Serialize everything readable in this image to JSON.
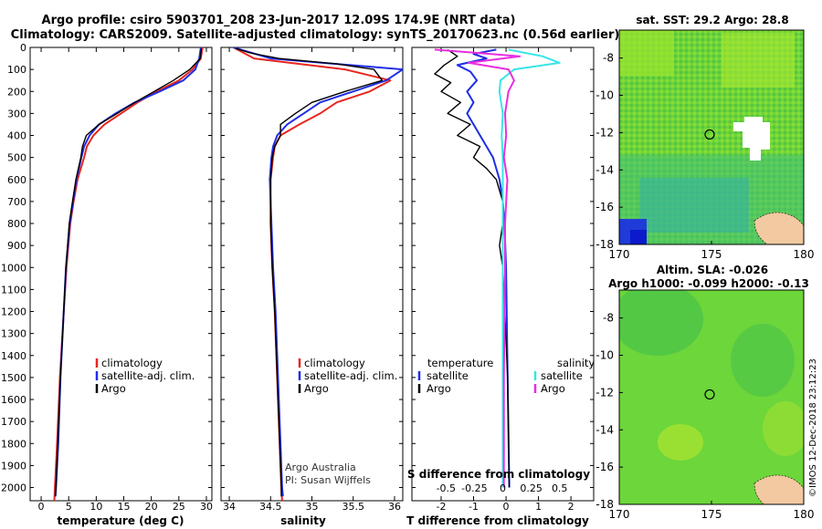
{
  "header": {
    "title_line1": "Argo profile: csiro 5903701_208 23-Jun-2017 12.09S 174.9E (NRT data)",
    "title_line2": "Climatology: CARS2009. Satellite-adjusted climatology: synTS_20170623.nc (0.56d earlier)"
  },
  "colors": {
    "climatology": "#e8261e",
    "satellite": "#1f2ee6",
    "argo": "#000000",
    "sal_sat": "#38e6e6",
    "sal_argo": "#e82ee0",
    "land": "#f2c9a0"
  },
  "footer": {
    "credit1": "Argo Australia",
    "credit2": "PI: Susan Wijffels",
    "stamp": "©IMOS 12-Dec-2018 23:12:23"
  },
  "chart_data": [
    {
      "type": "line",
      "title": "",
      "xlabel": "temperature (deg C)",
      "ylabel": "",
      "xlim": [
        -2,
        31
      ],
      "ylim": [
        2060,
        0
      ],
      "x_ticks": [
        "0",
        "5",
        "10",
        "15",
        "20",
        "25",
        "30"
      ],
      "x_tick_values": [
        0,
        5,
        10,
        15,
        20,
        25,
        30
      ],
      "y_tick_values": [
        0,
        100,
        200,
        300,
        400,
        500,
        600,
        700,
        800,
        900,
        1000,
        1100,
        1200,
        1300,
        1400,
        1500,
        1600,
        1700,
        1800,
        1900,
        2000
      ],
      "legend": [
        "climatology",
        "satellite-adj. clim.",
        "Argo"
      ],
      "series": [
        {
          "name": "climatology",
          "color_key": "climatology",
          "depth": [
            0,
            50,
            100,
            150,
            200,
            250,
            300,
            350,
            400,
            450,
            500,
            600,
            700,
            800,
            1000,
            1200,
            1500,
            1800,
            2000,
            2060
          ],
          "values": [
            29.3,
            29.0,
            27.5,
            25.0,
            21.0,
            17.5,
            14.5,
            11.5,
            9.5,
            8.3,
            7.8,
            6.6,
            5.9,
            5.3,
            4.6,
            4.1,
            3.4,
            2.9,
            2.5,
            2.4
          ]
        },
        {
          "name": "satellite-adj. clim.",
          "color_key": "satellite",
          "depth": [
            0,
            50,
            100,
            150,
            200,
            250,
            300,
            350,
            400,
            450,
            500,
            600,
            700,
            800,
            1000,
            1200,
            1500,
            1800,
            2000,
            2040
          ],
          "values": [
            29.0,
            28.7,
            28.0,
            25.8,
            21.5,
            17.0,
            13.5,
            10.5,
            8.8,
            7.8,
            7.3,
            6.4,
            5.8,
            5.2,
            4.5,
            4.1,
            3.5,
            3.1,
            2.7,
            2.6
          ]
        },
        {
          "name": "Argo",
          "color_key": "argo",
          "depth": [
            5,
            50,
            100,
            150,
            200,
            250,
            300,
            350,
            400,
            450,
            500,
            600,
            700,
            800,
            1000,
            1200,
            1500,
            1800,
            2000,
            2040
          ],
          "values": [
            29.1,
            28.9,
            27.0,
            24.0,
            20.5,
            17.0,
            13.8,
            10.5,
            8.2,
            7.5,
            7.2,
            6.3,
            5.7,
            5.1,
            4.5,
            4.1,
            3.5,
            3.0,
            2.7,
            2.6
          ]
        }
      ]
    },
    {
      "type": "line",
      "title": "",
      "xlabel": "salinity",
      "ylabel": "",
      "xlim": [
        33.9,
        36.1
      ],
      "ylim": [
        2060,
        0
      ],
      "x_ticks": [
        "34",
        "34.5",
        "35",
        "35.5",
        "36"
      ],
      "x_tick_values": [
        34,
        34.5,
        35,
        35.5,
        36
      ],
      "legend": [
        "climatology",
        "satellite-adj. clim.",
        "Argo"
      ],
      "series": [
        {
          "name": "climatology",
          "color_key": "climatology",
          "depth": [
            0,
            50,
            100,
            150,
            200,
            250,
            300,
            350,
            400,
            450,
            500,
            600,
            700,
            800,
            1000,
            1200,
            1500,
            1800,
            2000,
            2060
          ],
          "values": [
            34.05,
            34.3,
            35.4,
            35.95,
            35.7,
            35.3,
            35.1,
            34.85,
            34.62,
            34.55,
            34.53,
            34.5,
            34.5,
            34.5,
            34.52,
            34.55,
            34.58,
            34.61,
            34.63,
            34.64
          ]
        },
        {
          "name": "satellite-adj. clim.",
          "color_key": "satellite",
          "depth": [
            0,
            50,
            100,
            150,
            200,
            250,
            300,
            350,
            400,
            450,
            500,
            600,
            700,
            800,
            1000,
            1200,
            1500,
            1800,
            2000,
            2040
          ],
          "values": [
            34.05,
            34.5,
            36.1,
            35.9,
            35.5,
            35.1,
            34.9,
            34.7,
            34.58,
            34.53,
            34.51,
            34.49,
            34.5,
            34.51,
            34.53,
            34.56,
            34.59,
            34.62,
            34.64,
            34.65
          ]
        },
        {
          "name": "Argo",
          "color_key": "argo",
          "depth": [
            5,
            25,
            50,
            75,
            100,
            150,
            200,
            250,
            300,
            350,
            400,
            450,
            500,
            600,
            700,
            800,
            1000,
            1200,
            1500,
            1800,
            2000,
            2040
          ],
          "values": [
            34.08,
            34.25,
            34.6,
            35.3,
            35.75,
            35.85,
            35.4,
            35.0,
            34.8,
            34.62,
            34.62,
            34.55,
            34.52,
            34.5,
            34.5,
            34.5,
            34.52,
            34.55,
            34.58,
            34.61,
            34.63,
            34.63
          ]
        }
      ]
    },
    {
      "type": "line",
      "title": "",
      "xlabel": "T difference from climatology",
      "x2label": "S difference from climatology",
      "xlim": [
        -2.9,
        2.7
      ],
      "x2lim": [
        -0.8,
        0.8
      ],
      "ylim": [
        2060,
        0
      ],
      "x_ticks": [
        "-2",
        "-1",
        "0",
        "1",
        "2"
      ],
      "x_tick_values": [
        -2,
        -1,
        0,
        1,
        2
      ],
      "x2_ticks": [
        "-0.5",
        "-0.25",
        "0",
        "0.25",
        "0.5"
      ],
      "x2_tick_values": [
        -0.5,
        -0.25,
        0,
        0.25,
        0.5
      ],
      "legend_left_title": "temperature",
      "legend_right_title": "salinity",
      "legend": [
        "satellite",
        "Argo",
        "satellite",
        "Argo"
      ],
      "series": [
        {
          "name": "T satellite",
          "axis": "T",
          "color_key": "satellite",
          "depth": [
            10,
            30,
            50,
            80,
            110,
            150,
            200,
            250,
            300,
            400,
            500,
            600,
            700,
            800,
            1000,
            1500,
            2000
          ],
          "values": [
            -0.3,
            -1.0,
            -0.6,
            -1.5,
            -1.1,
            -0.9,
            -1.2,
            -1.0,
            -1.2,
            -0.8,
            -0.4,
            -0.2,
            -0.1,
            -0.05,
            0.0,
            0.05,
            0.1
          ]
        },
        {
          "name": "T Argo",
          "axis": "T",
          "color_key": "argo",
          "depth": [
            10,
            40,
            80,
            120,
            160,
            200,
            250,
            300,
            350,
            400,
            450,
            500,
            550,
            600,
            650,
            700,
            800,
            900,
            1000,
            1500,
            2000
          ],
          "values": [
            -1.8,
            -1.5,
            -1.9,
            -2.2,
            -1.7,
            -2.0,
            -1.4,
            -1.8,
            -1.1,
            -1.5,
            -0.8,
            -1.0,
            -0.6,
            -0.3,
            -0.2,
            -0.1,
            -0.1,
            -0.2,
            -0.1,
            0.05,
            0.1
          ]
        },
        {
          "name": "S satellite",
          "axis": "S",
          "color_key": "sal_sat",
          "depth": [
            10,
            40,
            70,
            100,
            150,
            200,
            300,
            400,
            500,
            600,
            800,
            1000,
            1500,
            2000
          ],
          "values": [
            0.05,
            0.35,
            0.5,
            0.1,
            -0.02,
            -0.03,
            0.0,
            -0.01,
            0.0,
            0.0,
            0.0,
            0.0,
            0.0,
            0.0
          ]
        },
        {
          "name": "S Argo",
          "axis": "S",
          "color_key": "sal_argo",
          "depth": [
            10,
            40,
            70,
            100,
            150,
            200,
            300,
            400,
            500,
            600,
            700,
            800,
            1000,
            1500,
            2000
          ],
          "values": [
            -0.6,
            0.15,
            -0.3,
            0.05,
            0.1,
            0.05,
            0.02,
            0.03,
            0.01,
            0.04,
            0.03,
            0.02,
            0.02,
            0.01,
            0.01
          ]
        }
      ]
    },
    {
      "type": "heatmap",
      "title": "sat. SST: 29.2 Argo: 28.8",
      "xlim": [
        170,
        180
      ],
      "ylim": [
        -18,
        -6.5
      ],
      "x_ticks": [
        "170",
        "175",
        "180"
      ],
      "x_tick_values": [
        170,
        175,
        180
      ],
      "y_ticks": [
        "-8",
        "-10",
        "-12",
        "-14",
        "-16",
        "-18"
      ],
      "y_tick_values": [
        -8,
        -10,
        -12,
        -14,
        -16,
        -18
      ],
      "marker": {
        "lon": 174.9,
        "lat": -12.1
      }
    },
    {
      "type": "heatmap",
      "title_line1": "Altim. SLA: -0.026",
      "title_line2": "Argo h1000: -0.099 h2000: -0.13",
      "xlim": [
        170,
        180
      ],
      "ylim": [
        -18,
        -6.5
      ],
      "x_ticks": [
        "170",
        "175",
        "180"
      ],
      "x_tick_values": [
        170,
        175,
        180
      ],
      "y_ticks": [
        "-8",
        "-10",
        "-12",
        "-14",
        "-16",
        "-18"
      ],
      "y_tick_values": [
        -8,
        -10,
        -12,
        -14,
        -16,
        -18
      ],
      "marker": {
        "lon": 174.9,
        "lat": -12.1
      }
    }
  ]
}
